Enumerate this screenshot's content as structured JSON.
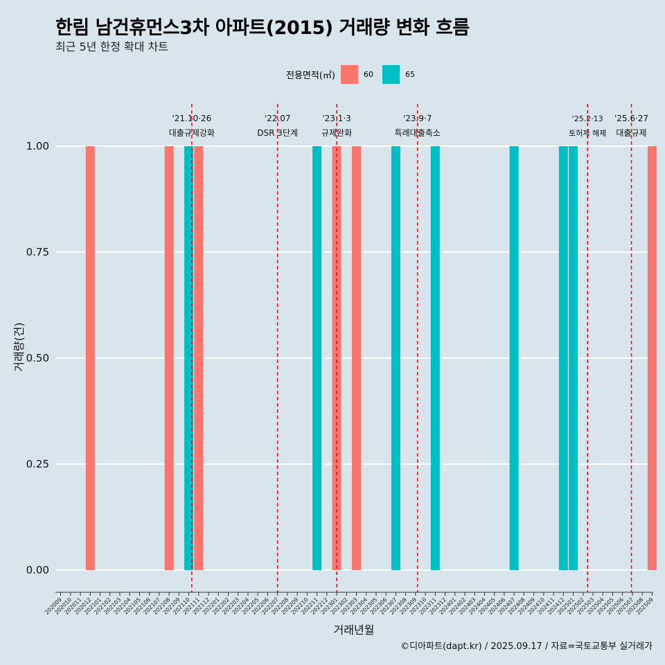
{
  "title": "한림 남건휴먼스3차 아파트(2015) 거래량 변화 흐름",
  "subtitle": "최근 5년 한정 확대 차트",
  "caption": "©디아파트(dapt.kr) / 2025.09.17 / 자료=국토교통부 실거래가",
  "legend": {
    "title": "전용면적(㎡)",
    "items": [
      {
        "label": "60",
        "color": "#f8766d"
      },
      {
        "label": "65",
        "color": "#00bfc4"
      }
    ]
  },
  "chart_data": {
    "type": "bar",
    "xlabel": "거래년월",
    "ylabel": "거래량(건)",
    "ylim": [
      0,
      1
    ],
    "yticks": [
      "0.00",
      "0.25",
      "0.50",
      "0.75",
      "1.00"
    ],
    "categories": [
      "202009",
      "202010",
      "202011",
      "202012",
      "202101",
      "202102",
      "202103",
      "202104",
      "202105",
      "202106",
      "202107",
      "202108",
      "202109",
      "202110",
      "202111",
      "202112",
      "202201",
      "202202",
      "202203",
      "202204",
      "202205",
      "202206",
      "202207",
      "202208",
      "202209",
      "202210",
      "202211",
      "202212",
      "202301",
      "202302",
      "202303",
      "202304",
      "202305",
      "202306",
      "202307",
      "202308",
      "202309",
      "202310",
      "202311",
      "202312",
      "202401",
      "202402",
      "202403",
      "202404",
      "202405",
      "202406",
      "202407",
      "202408",
      "202409",
      "202410",
      "202411",
      "202412",
      "202501",
      "202502",
      "202503",
      "202504",
      "202505",
      "202506",
      "202507",
      "202508",
      "202509"
    ],
    "series": [
      {
        "name": "60",
        "color": "#f8766d",
        "points": [
          {
            "month": "202012",
            "value": 1
          },
          {
            "month": "202108",
            "value": 1
          },
          {
            "month": "202111",
            "value": 1
          },
          {
            "month": "202301",
            "value": 1
          },
          {
            "month": "202303",
            "value": 1
          },
          {
            "month": "202509",
            "value": 1
          }
        ]
      },
      {
        "name": "65",
        "color": "#00bfc4",
        "points": [
          {
            "month": "202110",
            "value": 1
          },
          {
            "month": "202211",
            "value": 1
          },
          {
            "month": "202307",
            "value": 1
          },
          {
            "month": "202311",
            "value": 1
          },
          {
            "month": "202407",
            "value": 1
          },
          {
            "month": "202412",
            "value": 1
          },
          {
            "month": "202501",
            "value": 1
          }
        ]
      }
    ],
    "events": [
      {
        "month": "202110",
        "offset": 0.3,
        "date": "'21.10·26",
        "label": "대출규제강화"
      },
      {
        "month": "202207",
        "offset": 0.0,
        "date": "'22.07",
        "label": "DSR 3단계"
      },
      {
        "month": "202301",
        "offset": 0.0,
        "date": "'23.1·3",
        "label": "규제완화"
      },
      {
        "month": "202309",
        "offset": 0.2,
        "date": "'23.9·7",
        "label": "특례대출축소"
      },
      {
        "month": "202502",
        "offset": 0.45,
        "date": "'25.2·13",
        "label": "토허제 해제",
        "small": true
      },
      {
        "month": "202506",
        "offset": 0.9,
        "date": "'25.6·27",
        "label": "대출규제"
      }
    ]
  }
}
